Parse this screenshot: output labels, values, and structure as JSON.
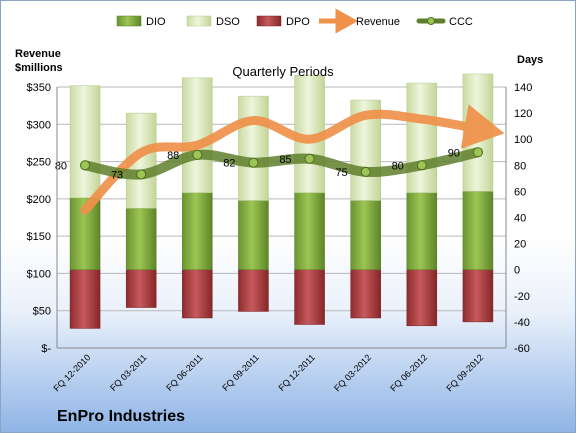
{
  "company": "EnPro Industries",
  "chart_data": {
    "type": "bar",
    "subtitle": "Quarterly Periods",
    "left_axis_label_line1": "Revenue",
    "left_axis_label_line2": "$millions",
    "right_axis_label": "Days",
    "left_ylim": [
      0,
      350
    ],
    "left_ticks": [
      "$-",
      "$50",
      "$100",
      "$150",
      "$200",
      "$250",
      "$300",
      "$350"
    ],
    "right_ylim": [
      -60,
      140
    ],
    "right_ticks": [
      "-60",
      "-40",
      "-20",
      "0",
      "20",
      "40",
      "60",
      "80",
      "100",
      "120",
      "140"
    ],
    "categories": [
      "FQ 12-2010",
      "FQ 03-2011",
      "FQ 06-2011",
      "FQ 09-2011",
      "FQ 12-2011",
      "FQ 03-2012",
      "FQ 06-2012",
      "FQ 09-2012"
    ],
    "legend_position": "top",
    "grid": true,
    "series": [
      {
        "name": "DIO",
        "axis": "right",
        "color": "#7fa83a",
        "values": [
          55,
          47,
          59,
          53,
          59,
          53,
          59,
          60
        ]
      },
      {
        "name": "DSO",
        "axis": "right",
        "color": "#d7e4bd",
        "values": [
          86,
          73,
          88,
          80,
          90,
          77,
          84,
          90
        ]
      },
      {
        "name": "DPO",
        "axis": "right",
        "color": "#a8383b",
        "values": [
          -45,
          -29,
          -37,
          -32,
          -42,
          -37,
          -43,
          -40
        ]
      },
      {
        "name": "Revenue",
        "axis": "left",
        "color": "#f0914a",
        "values": [
          185,
          262,
          272,
          305,
          280,
          312,
          307,
          294
        ]
      },
      {
        "name": "CCC",
        "axis": "right",
        "color": "#5f7f2a",
        "values": [
          80,
          73,
          88,
          82,
          85,
          75,
          80,
          90
        ]
      }
    ],
    "ccc_labels": [
      "80",
      "73",
      "88",
      "82",
      "85",
      "75",
      "80",
      "90"
    ]
  }
}
